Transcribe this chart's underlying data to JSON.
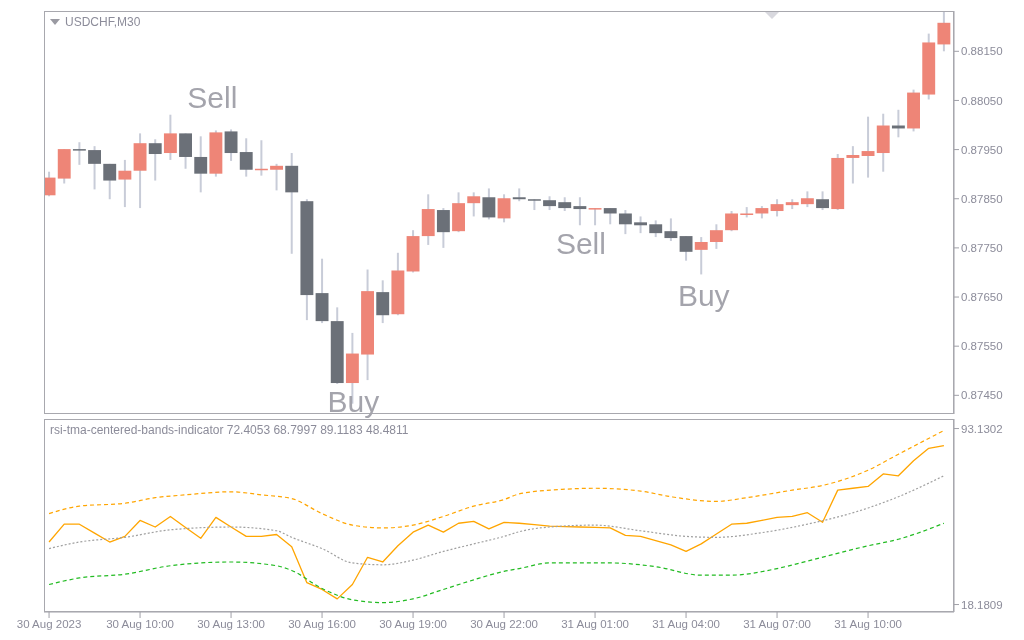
{
  "chart_data": [
    {
      "type": "candlestick",
      "title": "USDCHF,M30",
      "tick_labels": "y",
      "x": [
        "2023-08-30T07:00",
        "2023-08-30T07:30",
        "2023-08-30T08:00",
        "2023-08-30T08:30",
        "2023-08-30T09:00",
        "2023-08-30T09:30",
        "2023-08-30T10:00",
        "2023-08-30T10:30",
        "2023-08-30T11:00",
        "2023-08-30T11:30",
        "2023-08-30T12:00",
        "2023-08-30T12:30",
        "2023-08-30T13:00",
        "2023-08-30T13:30",
        "2023-08-30T14:00",
        "2023-08-30T14:30",
        "2023-08-30T15:00",
        "2023-08-30T15:30",
        "2023-08-30T16:00",
        "2023-08-30T16:30",
        "2023-08-30T17:00",
        "2023-08-30T17:30",
        "2023-08-30T18:00",
        "2023-08-30T18:30",
        "2023-08-30T19:00",
        "2023-08-30T19:30",
        "2023-08-30T20:00",
        "2023-08-30T20:30",
        "2023-08-30T21:00",
        "2023-08-30T21:30",
        "2023-08-30T22:00",
        "2023-08-30T22:30",
        "2023-08-30T23:00",
        "2023-08-30T23:30",
        "2023-08-31T00:00",
        "2023-08-31T00:30",
        "2023-08-31T01:00",
        "2023-08-31T01:30",
        "2023-08-31T02:00",
        "2023-08-31T02:30",
        "2023-08-31T03:00",
        "2023-08-31T03:30",
        "2023-08-31T04:00",
        "2023-08-31T04:30",
        "2023-08-31T05:00",
        "2023-08-31T05:30",
        "2023-08-31T06:00",
        "2023-08-31T06:30",
        "2023-08-31T07:00",
        "2023-08-31T07:30",
        "2023-08-31T08:00",
        "2023-08-31T08:30",
        "2023-08-31T09:00",
        "2023-08-31T09:30",
        "2023-08-31T10:00",
        "2023-08-31T10:30",
        "2023-08-31T11:00",
        "2023-08-31T11:30",
        "2023-08-31T12:00",
        "2023-08-31T12:30"
      ],
      "ohlc": [
        [
          0.87857,
          0.87905,
          0.87855,
          0.87893
        ],
        [
          0.87891,
          0.87951,
          0.87881,
          0.87951
        ],
        [
          0.87951,
          0.87965,
          0.87919,
          0.87951
        ],
        [
          0.87949,
          0.87957,
          0.87869,
          0.87921
        ],
        [
          0.87921,
          0.87921,
          0.87849,
          0.87887
        ],
        [
          0.87889,
          0.87929,
          0.87833,
          0.87907
        ],
        [
          0.87907,
          0.87983,
          0.87831,
          0.87963
        ],
        [
          0.87963,
          0.87971,
          0.87887,
          0.87941
        ],
        [
          0.87943,
          0.88021,
          0.87929,
          0.87983
        ],
        [
          0.87983,
          0.87983,
          0.87911,
          0.87935
        ],
        [
          0.87935,
          0.87977,
          0.87863,
          0.87901
        ],
        [
          0.87901,
          0.87989,
          0.87895,
          0.87985
        ],
        [
          0.87987,
          0.87991,
          0.87927,
          0.87943
        ],
        [
          0.87945,
          0.87973,
          0.87895,
          0.87909
        ],
        [
          0.8791,
          0.87969,
          0.87897,
          0.87911
        ],
        [
          0.87909,
          0.87921,
          0.87867,
          0.87917
        ],
        [
          0.87917,
          0.87943,
          0.87738,
          0.87863
        ],
        [
          0.87845,
          0.87849,
          0.87603,
          0.87654
        ],
        [
          0.87658,
          0.87728,
          0.87597,
          0.87601
        ],
        [
          0.87601,
          0.87629,
          0.87473,
          0.87475
        ],
        [
          0.87475,
          0.87577,
          0.87433,
          0.87535
        ],
        [
          0.87533,
          0.87706,
          0.87481,
          0.87662
        ],
        [
          0.8766,
          0.87684,
          0.87597,
          0.87613
        ],
        [
          0.87615,
          0.8774,
          0.87613,
          0.87704
        ],
        [
          0.87702,
          0.87786,
          0.877,
          0.87774
        ],
        [
          0.87774,
          0.87859,
          0.87756,
          0.87829
        ],
        [
          0.87827,
          0.87831,
          0.8775,
          0.87782
        ],
        [
          0.87784,
          0.87863,
          0.87782,
          0.87841
        ],
        [
          0.87841,
          0.87863,
          0.87814,
          0.87855
        ],
        [
          0.87853,
          0.87871,
          0.87808,
          0.87812
        ],
        [
          0.8781,
          0.87859,
          0.87802,
          0.87851
        ],
        [
          0.87853,
          0.87871,
          0.87845,
          0.87849
        ],
        [
          0.87849,
          0.87849,
          0.87827,
          0.87847
        ],
        [
          0.87847,
          0.87855,
          0.87827,
          0.87835
        ],
        [
          0.87843,
          0.87853,
          0.87825,
          0.87831
        ],
        [
          0.87835,
          0.87853,
          0.87796,
          0.87829
        ],
        [
          0.8783,
          0.87831,
          0.87796,
          0.87831
        ],
        [
          0.87831,
          0.87831,
          0.87798,
          0.8782
        ],
        [
          0.8782,
          0.87827,
          0.87778,
          0.87798
        ],
        [
          0.87802,
          0.87814,
          0.8778,
          0.87796
        ],
        [
          0.87798,
          0.87806,
          0.87772,
          0.8778
        ],
        [
          0.87784,
          0.8781,
          0.87764,
          0.8777
        ],
        [
          0.87774,
          0.87774,
          0.87724,
          0.87742
        ],
        [
          0.87746,
          0.87772,
          0.87696,
          0.87762
        ],
        [
          0.87762,
          0.87798,
          0.87748,
          0.87786
        ],
        [
          0.87786,
          0.87825,
          0.87784,
          0.8782
        ],
        [
          0.87819,
          0.87833,
          0.87812,
          0.8782
        ],
        [
          0.8782,
          0.87835,
          0.8781,
          0.87831
        ],
        [
          0.87825,
          0.87849,
          0.87814,
          0.87839
        ],
        [
          0.87837,
          0.87849,
          0.87829,
          0.87843
        ],
        [
          0.87839,
          0.87865,
          0.87833,
          0.87851
        ],
        [
          0.87849,
          0.87865,
          0.87827,
          0.87831
        ],
        [
          0.87829,
          0.87941,
          0.87827,
          0.87933
        ],
        [
          0.87933,
          0.87957,
          0.87881,
          0.87939
        ],
        [
          0.87937,
          0.88017,
          0.87893,
          0.87947
        ],
        [
          0.87943,
          0.88023,
          0.87905,
          0.87999
        ],
        [
          0.87999,
          0.88031,
          0.87975,
          0.87993
        ],
        [
          0.87993,
          0.88072,
          0.87987,
          0.88066
        ],
        [
          0.88062,
          0.88186,
          0.88052,
          0.88168
        ],
        [
          0.88164,
          0.8823,
          0.8815,
          0.88208
        ]
      ],
      "colors": [
        "#ee8577",
        "#ee8577",
        "#6b7078",
        "#6b7078",
        "#6b7078",
        "#ee8577",
        "#ee8577",
        "#6b7078",
        "#ee8577",
        "#6b7078",
        "#6b7078",
        "#ee8577",
        "#6b7078",
        "#6b7078",
        "#ee8577",
        "#ee8577",
        "#6b7078",
        "#6b7078",
        "#6b7078",
        "#6b7078",
        "#ee8577",
        "#ee8577",
        "#6b7078",
        "#ee8577",
        "#ee8577",
        "#ee8577",
        "#6b7078",
        "#ee8577",
        "#ee8577",
        "#6b7078",
        "#ee8577",
        "#6b7078",
        "#6b7078",
        "#6b7078",
        "#6b7078",
        "#6b7078",
        "#ee8577",
        "#6b7078",
        "#6b7078",
        "#6b7078",
        "#6b7078",
        "#6b7078",
        "#6b7078",
        "#ee8577",
        "#ee8577",
        "#ee8577",
        "#ee8577",
        "#ee8577",
        "#ee8577",
        "#ee8577",
        "#ee8577",
        "#6b7078",
        "#ee8577",
        "#ee8577",
        "#ee8577",
        "#ee8577",
        "#6b7078",
        "#ee8577",
        "#ee8577",
        "#ee8577"
      ],
      "xlim": [
        "2023-08-30T06:50",
        "2023-08-31T12:50"
      ],
      "ylim": [
        0.87412,
        0.88232
      ],
      "yticks": [
        {
          "value": 0.8745,
          "label": "0.87450"
        },
        {
          "value": 0.8755,
          "label": "0.87550"
        },
        {
          "value": 0.8765,
          "label": "0.87650"
        },
        {
          "value": 0.8775,
          "label": "0.87750"
        },
        {
          "value": 0.8785,
          "label": "0.87850"
        },
        {
          "value": 0.8795,
          "label": "0.87950"
        },
        {
          "value": 0.8805,
          "label": "0.88050"
        },
        {
          "value": 0.8815,
          "label": "0.88150"
        }
      ],
      "annotations": [
        "Sell",
        "Buy",
        "Sell",
        "Buy"
      ]
    },
    {
      "type": "line",
      "title": "rsi-tma-centered-bands-indicator 72.4053 68.7997 89.1183 48.4811",
      "x": [
        "2023-08-30T07:00",
        "2023-08-30T07:30",
        "2023-08-30T08:00",
        "2023-08-30T08:30",
        "2023-08-30T09:00",
        "2023-08-30T09:30",
        "2023-08-30T10:00",
        "2023-08-30T10:30",
        "2023-08-30T11:00",
        "2023-08-30T11:30",
        "2023-08-30T12:00",
        "2023-08-30T12:30",
        "2023-08-30T13:00",
        "2023-08-30T13:30",
        "2023-08-30T14:00",
        "2023-08-30T14:30",
        "2023-08-30T15:00",
        "2023-08-30T15:30",
        "2023-08-30T16:00",
        "2023-08-30T16:30",
        "2023-08-30T17:00",
        "2023-08-30T17:30",
        "2023-08-30T18:00",
        "2023-08-30T18:30",
        "2023-08-30T19:00",
        "2023-08-30T19:30",
        "2023-08-30T20:00",
        "2023-08-30T20:30",
        "2023-08-30T21:00",
        "2023-08-30T21:30",
        "2023-08-30T22:00",
        "2023-08-30T22:30",
        "2023-08-30T23:00",
        "2023-08-30T23:30",
        "2023-08-31T00:00",
        "2023-08-31T00:30",
        "2023-08-31T01:00",
        "2023-08-31T01:30",
        "2023-08-31T02:00",
        "2023-08-31T02:30",
        "2023-08-31T03:00",
        "2023-08-31T03:30",
        "2023-08-31T04:00",
        "2023-08-31T04:30",
        "2023-08-31T05:00",
        "2023-08-31T05:30",
        "2023-08-31T06:00",
        "2023-08-31T06:30",
        "2023-08-31T07:00",
        "2023-08-31T07:30",
        "2023-08-31T08:00",
        "2023-08-31T08:30",
        "2023-08-31T09:00",
        "2023-08-31T09:30",
        "2023-08-31T10:00",
        "2023-08-31T10:30",
        "2023-08-31T11:00",
        "2023-08-31T11:30",
        "2023-08-31T12:00",
        "2023-08-31T12:30"
      ],
      "series": [
        {
          "color": "#ffa500",
          "line_style": "solid",
          "values": [
            44.8,
            52.4,
            52.4,
            48.6,
            44.8,
            47.2,
            54.0,
            51.2,
            55.7,
            51.0,
            46.4,
            55.3,
            51.2,
            47.2,
            47.2,
            48.0,
            42.8,
            27.5,
            24.6,
            20.6,
            26.7,
            38.3,
            36.3,
            43.2,
            49.0,
            52.0,
            49.0,
            52.8,
            53.6,
            50.4,
            53.2,
            52.8,
            52.2,
            51.6,
            51.4,
            51.2,
            51.0,
            50.8,
            47.6,
            47.2,
            45.4,
            43.6,
            40.8,
            44.0,
            48.2,
            52.4,
            52.8,
            54.0,
            55.3,
            55.7,
            57.3,
            53.2,
            66.9,
            67.7,
            68.5,
            73.8,
            73.0,
            79.4,
            84.7,
            85.9
          ]
        },
        {
          "color": "#ffa500",
          "line_style": "dashed",
          "x": [
            "2023-08-30T07:00",
            "2023-08-30T08:00",
            "2023-08-30T09:30",
            "2023-08-30T10:30",
            "2023-08-30T11:30",
            "2023-08-30T13:00",
            "2023-08-30T14:00",
            "2023-08-30T15:00",
            "2023-08-30T16:00",
            "2023-08-30T17:00",
            "2023-08-30T18:00",
            "2023-08-30T19:00",
            "2023-08-30T20:00",
            "2023-08-30T21:00",
            "2023-08-30T22:00",
            "2023-08-30T22:30",
            "2023-08-31T00:00",
            "2023-08-31T01:00",
            "2023-08-31T02:30",
            "2023-08-31T03:30",
            "2023-08-31T05:00",
            "2023-08-31T06:00",
            "2023-08-31T07:30",
            "2023-08-31T08:30",
            "2023-08-31T10:00",
            "2023-08-31T11:00",
            "2023-08-31T12:30"
          ],
          "values": [
            56.9,
            60.1,
            61.3,
            63.7,
            64.9,
            66.2,
            64.9,
            63.3,
            56.9,
            52.0,
            50.8,
            52.0,
            55.7,
            60.1,
            62.9,
            65.3,
            67.3,
            67.7,
            66.5,
            64.1,
            62.1,
            63.7,
            66.9,
            68.9,
            75.4,
            82.2,
            92.3
          ]
        },
        {
          "color": "#a0a0a0",
          "line_style": "dotted",
          "x": [
            "2023-08-30T07:00",
            "2023-08-30T08:00",
            "2023-08-30T09:30",
            "2023-08-30T11:00",
            "2023-08-30T13:00",
            "2023-08-30T14:30",
            "2023-08-30T15:00",
            "2023-08-30T16:00",
            "2023-08-30T17:00",
            "2023-08-30T18:00",
            "2023-08-30T19:00",
            "2023-08-30T20:00",
            "2023-08-30T21:00",
            "2023-08-30T22:00",
            "2023-08-30T22:30",
            "2023-08-30T23:30",
            "2023-08-31T01:00",
            "2023-08-31T02:30",
            "2023-08-31T04:00",
            "2023-08-31T05:00",
            "2023-08-31T06:30",
            "2023-08-31T08:00",
            "2023-08-31T10:00",
            "2023-08-31T11:00",
            "2023-08-31T12:30"
          ],
          "values": [
            42.0,
            44.8,
            46.8,
            50.0,
            51.2,
            49.6,
            46.8,
            42.0,
            35.9,
            35.1,
            37.1,
            40.8,
            44.0,
            47.2,
            49.2,
            51.2,
            52.0,
            49.6,
            47.2,
            46.8,
            48.8,
            52.4,
            59.3,
            64.1,
            73.0
          ]
        },
        {
          "color": "#22bb22",
          "line_style": "dashed",
          "x": [
            "2023-08-30T07:00",
            "2023-08-30T08:00",
            "2023-08-30T09:30",
            "2023-08-30T11:00",
            "2023-08-30T13:00",
            "2023-08-30T14:30",
            "2023-08-30T15:00",
            "2023-08-30T16:00",
            "2023-08-30T17:00",
            "2023-08-30T18:00",
            "2023-08-30T19:00",
            "2023-08-30T20:00",
            "2023-08-30T21:00",
            "2023-08-30T22:00",
            "2023-08-30T22:30",
            "2023-08-30T23:30",
            "2023-08-31T01:30",
            "2023-08-31T03:00",
            "2023-08-31T04:30",
            "2023-08-31T05:30",
            "2023-08-31T07:00",
            "2023-08-31T08:00",
            "2023-08-31T10:00",
            "2023-08-31T11:00",
            "2023-08-31T12:30"
          ],
          "values": [
            26.7,
            29.5,
            31.1,
            34.7,
            36.3,
            34.7,
            32.7,
            25.0,
            20.2,
            19.0,
            20.6,
            24.6,
            28.7,
            32.3,
            33.5,
            35.9,
            35.9,
            34.3,
            30.7,
            30.7,
            33.5,
            36.7,
            43.2,
            46.0,
            52.8
          ]
        }
      ],
      "xlim": [
        "2023-08-30T06:50",
        "2023-08-31T12:50"
      ],
      "xticks": [
        {
          "value": "2023-08-30T07:00",
          "label": "30 Aug 2023"
        },
        {
          "value": "2023-08-30T10:00",
          "label": "30 Aug 10:00"
        },
        {
          "value": "2023-08-30T13:00",
          "label": "30 Aug 13:00"
        },
        {
          "value": "2023-08-30T16:00",
          "label": "30 Aug 16:00"
        },
        {
          "value": "2023-08-30T19:00",
          "label": "30 Aug 19:00"
        },
        {
          "value": "2023-08-30T22:00",
          "label": "30 Aug 22:00"
        },
        {
          "value": "2023-08-31T01:00",
          "label": "31 Aug 01:00"
        },
        {
          "value": "2023-08-31T04:00",
          "label": "31 Aug 04:00"
        },
        {
          "value": "2023-08-31T07:00",
          "label": "31 Aug 07:00"
        },
        {
          "value": "2023-08-31T10:00",
          "label": "31 Aug 10:00"
        }
      ],
      "ylim": [
        15.0,
        97.2
      ],
      "yticks": [
        93.1302,
        18.1809
      ]
    }
  ]
}
